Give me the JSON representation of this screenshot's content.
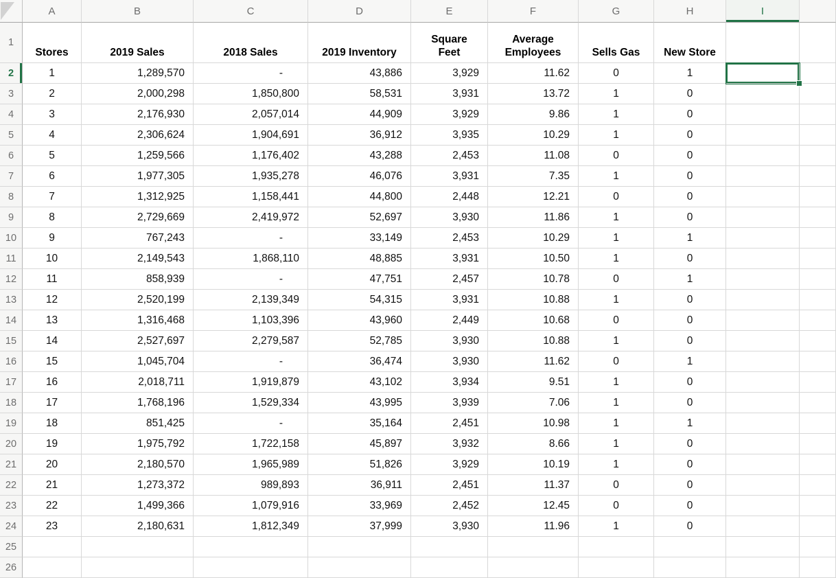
{
  "selection": {
    "cell": "I2",
    "column": "I",
    "row": "2"
  },
  "colors": {
    "accent_green": "#217346",
    "gridline": "#d8d8d8",
    "header_background": "#f7f7f6",
    "header_separator": "#a6a6a6",
    "header_text": "#6d6d6d"
  },
  "sheet": {
    "column_headers": [
      "A",
      "B",
      "C",
      "D",
      "E",
      "F",
      "G",
      "H",
      "I"
    ],
    "row_numbers": [
      "1",
      "2",
      "3",
      "4",
      "5",
      "6",
      "7",
      "8",
      "9",
      "10",
      "11",
      "12",
      "13",
      "14",
      "15",
      "16",
      "17",
      "18",
      "19",
      "20",
      "21",
      "22",
      "23",
      "24",
      "25",
      "26"
    ],
    "columns": [
      {
        "col": "A",
        "key": "store",
        "label": "Stores",
        "align": "center"
      },
      {
        "col": "B",
        "key": "sales_2019",
        "label": "2019 Sales",
        "align": "right"
      },
      {
        "col": "C",
        "key": "sales_2018",
        "label": "2018 Sales",
        "align": "right"
      },
      {
        "col": "D",
        "key": "inventory_2019",
        "label": "2019 Inventory",
        "align": "right"
      },
      {
        "col": "E",
        "key": "square_feet",
        "label": "Square\nFeet",
        "align": "right"
      },
      {
        "col": "F",
        "key": "avg_employees",
        "label": "Average\nEmployees",
        "align": "right"
      },
      {
        "col": "G",
        "key": "sells_gas",
        "label": "Sells Gas",
        "align": "center"
      },
      {
        "col": "H",
        "key": "new_store",
        "label": "New Store",
        "align": "center"
      }
    ],
    "rows": [
      {
        "store": "1",
        "sales_2019": "1,289,570",
        "sales_2018": "-",
        "inventory_2019": "43,886",
        "square_feet": "3,929",
        "avg_employees": "11.62",
        "sells_gas": "0",
        "new_store": "1"
      },
      {
        "store": "2",
        "sales_2019": "2,000,298",
        "sales_2018": "1,850,800",
        "inventory_2019": "58,531",
        "square_feet": "3,931",
        "avg_employees": "13.72",
        "sells_gas": "1",
        "new_store": "0"
      },
      {
        "store": "3",
        "sales_2019": "2,176,930",
        "sales_2018": "2,057,014",
        "inventory_2019": "44,909",
        "square_feet": "3,929",
        "avg_employees": "9.86",
        "sells_gas": "1",
        "new_store": "0"
      },
      {
        "store": "4",
        "sales_2019": "2,306,624",
        "sales_2018": "1,904,691",
        "inventory_2019": "36,912",
        "square_feet": "3,935",
        "avg_employees": "10.29",
        "sells_gas": "1",
        "new_store": "0"
      },
      {
        "store": "5",
        "sales_2019": "1,259,566",
        "sales_2018": "1,176,402",
        "inventory_2019": "43,288",
        "square_feet": "2,453",
        "avg_employees": "11.08",
        "sells_gas": "0",
        "new_store": "0"
      },
      {
        "store": "6",
        "sales_2019": "1,977,305",
        "sales_2018": "1,935,278",
        "inventory_2019": "46,076",
        "square_feet": "3,931",
        "avg_employees": "7.35",
        "sells_gas": "1",
        "new_store": "0"
      },
      {
        "store": "7",
        "sales_2019": "1,312,925",
        "sales_2018": "1,158,441",
        "inventory_2019": "44,800",
        "square_feet": "2,448",
        "avg_employees": "12.21",
        "sells_gas": "0",
        "new_store": "0"
      },
      {
        "store": "8",
        "sales_2019": "2,729,669",
        "sales_2018": "2,419,972",
        "inventory_2019": "52,697",
        "square_feet": "3,930",
        "avg_employees": "11.86",
        "sells_gas": "1",
        "new_store": "0"
      },
      {
        "store": "9",
        "sales_2019": "767,243",
        "sales_2018": "-",
        "inventory_2019": "33,149",
        "square_feet": "2,453",
        "avg_employees": "10.29",
        "sells_gas": "1",
        "new_store": "1"
      },
      {
        "store": "10",
        "sales_2019": "2,149,543",
        "sales_2018": "1,868,110",
        "inventory_2019": "48,885",
        "square_feet": "3,931",
        "avg_employees": "10.50",
        "sells_gas": "1",
        "new_store": "0"
      },
      {
        "store": "11",
        "sales_2019": "858,939",
        "sales_2018": "-",
        "inventory_2019": "47,751",
        "square_feet": "2,457",
        "avg_employees": "10.78",
        "sells_gas": "0",
        "new_store": "1"
      },
      {
        "store": "12",
        "sales_2019": "2,520,199",
        "sales_2018": "2,139,349",
        "inventory_2019": "54,315",
        "square_feet": "3,931",
        "avg_employees": "10.88",
        "sells_gas": "1",
        "new_store": "0"
      },
      {
        "store": "13",
        "sales_2019": "1,316,468",
        "sales_2018": "1,103,396",
        "inventory_2019": "43,960",
        "square_feet": "2,449",
        "avg_employees": "10.68",
        "sells_gas": "0",
        "new_store": "0"
      },
      {
        "store": "14",
        "sales_2019": "2,527,697",
        "sales_2018": "2,279,587",
        "inventory_2019": "52,785",
        "square_feet": "3,930",
        "avg_employees": "10.88",
        "sells_gas": "1",
        "new_store": "0"
      },
      {
        "store": "15",
        "sales_2019": "1,045,704",
        "sales_2018": "-",
        "inventory_2019": "36,474",
        "square_feet": "3,930",
        "avg_employees": "11.62",
        "sells_gas": "0",
        "new_store": "1"
      },
      {
        "store": "16",
        "sales_2019": "2,018,711",
        "sales_2018": "1,919,879",
        "inventory_2019": "43,102",
        "square_feet": "3,934",
        "avg_employees": "9.51",
        "sells_gas": "1",
        "new_store": "0"
      },
      {
        "store": "17",
        "sales_2019": "1,768,196",
        "sales_2018": "1,529,334",
        "inventory_2019": "43,995",
        "square_feet": "3,939",
        "avg_employees": "7.06",
        "sells_gas": "1",
        "new_store": "0"
      },
      {
        "store": "18",
        "sales_2019": "851,425",
        "sales_2018": "-",
        "inventory_2019": "35,164",
        "square_feet": "2,451",
        "avg_employees": "10.98",
        "sells_gas": "1",
        "new_store": "1"
      },
      {
        "store": "19",
        "sales_2019": "1,975,792",
        "sales_2018": "1,722,158",
        "inventory_2019": "45,897",
        "square_feet": "3,932",
        "avg_employees": "8.66",
        "sells_gas": "1",
        "new_store": "0"
      },
      {
        "store": "20",
        "sales_2019": "2,180,570",
        "sales_2018": "1,965,989",
        "inventory_2019": "51,826",
        "square_feet": "3,929",
        "avg_employees": "10.19",
        "sells_gas": "1",
        "new_store": "0"
      },
      {
        "store": "21",
        "sales_2019": "1,273,372",
        "sales_2018": "989,893",
        "inventory_2019": "36,911",
        "square_feet": "2,451",
        "avg_employees": "11.37",
        "sells_gas": "0",
        "new_store": "0"
      },
      {
        "store": "22",
        "sales_2019": "1,499,366",
        "sales_2018": "1,079,916",
        "inventory_2019": "33,969",
        "square_feet": "2,452",
        "avg_employees": "12.45",
        "sells_gas": "0",
        "new_store": "0"
      },
      {
        "store": "23",
        "sales_2019": "2,180,631",
        "sales_2018": "1,812,349",
        "inventory_2019": "37,999",
        "square_feet": "3,930",
        "avg_employees": "11.96",
        "sells_gas": "1",
        "new_store": "0"
      }
    ]
  }
}
